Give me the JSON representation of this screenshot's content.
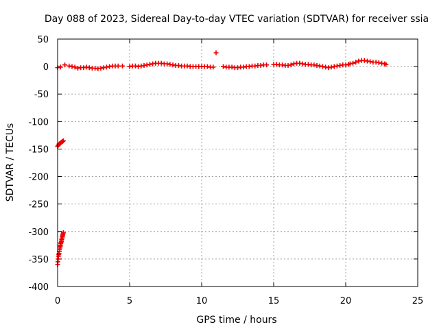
{
  "chart_data": {
    "type": "scatter",
    "title": "Day 088 of 2023, Sidereal Day-to-day VTEC variation (SDTVAR) for receiver ssia",
    "xlabel": "GPS time / hours",
    "ylabel": "SDTVAR / TECUs",
    "xlim": [
      0,
      25
    ],
    "ylim": [
      -400,
      50
    ],
    "xticks": [
      0,
      5,
      10,
      15,
      20,
      25
    ],
    "yticks": [
      50,
      0,
      -50,
      -100,
      -150,
      -200,
      -250,
      -300,
      -350,
      -400
    ],
    "grid": true,
    "legend": "none",
    "marker": "plus",
    "color": "#ee0000",
    "series": [
      {
        "segments": [
          {
            "x": [
              0.0,
              0.05,
              0.1,
              0.15,
              0.2,
              0.25,
              0.3,
              0.35,
              0.4
            ],
            "y": [
              -145,
              -143,
              -141,
              -140,
              -139,
              -138,
              -137,
              -136,
              -135
            ]
          },
          {
            "x": [
              0.0,
              0.02,
              0.04,
              0.06,
              0.08,
              0.1,
              0.12,
              0.14,
              0.16,
              0.18,
              0.2,
              0.22,
              0.24,
              0.26,
              0.28,
              0.3,
              0.32,
              0.34,
              0.36,
              0.38,
              0.4
            ],
            "y": [
              -360,
              -355,
              -350,
              -345,
              -342,
              -340,
              -336,
              -333,
              -330,
              -327,
              -325,
              -322,
              -320,
              -318,
              -315,
              -313,
              -310,
              -308,
              -306,
              -304,
              -302
            ]
          },
          {
            "x": [
              0.0,
              0.2,
              0.5,
              0.8,
              1.0,
              1.2,
              1.4,
              1.6,
              1.8,
              2.0,
              2.2,
              2.4,
              2.6,
              2.8,
              3.0,
              3.2,
              3.4,
              3.6,
              3.8,
              4.0,
              4.2
            ],
            "y": [
              -2,
              -1,
              3,
              1,
              0,
              -1,
              -3,
              -2,
              -2,
              -1,
              -2,
              -3,
              -3,
              -4,
              -3,
              -2,
              -1,
              0,
              1,
              1,
              1
            ]
          },
          {
            "x": [
              4.5
            ],
            "y": [
              1
            ]
          },
          {
            "x": [
              5.0,
              5.2,
              5.4,
              5.6,
              5.8,
              6.0,
              6.2,
              6.4,
              6.6,
              6.8,
              7.0,
              7.2,
              7.4,
              7.6,
              7.8,
              8.0,
              8.2,
              8.4,
              8.6,
              8.8,
              9.0,
              9.2,
              9.4,
              9.6,
              9.8,
              10.0,
              10.2,
              10.4,
              10.6,
              10.8
            ],
            "y": [
              0,
              1,
              1,
              0,
              1,
              2,
              3,
              4,
              5,
              6,
              6,
              6,
              5,
              5,
              4,
              3,
              2,
              2,
              1,
              1,
              1,
              0,
              0,
              0,
              0,
              0,
              0,
              0,
              -1,
              -1
            ]
          },
          {
            "x": [
              11.0
            ],
            "y": [
              25
            ]
          },
          {
            "x": [
              11.5,
              11.7,
              11.9,
              12.1,
              12.3,
              12.5,
              12.7,
              12.9,
              13.1,
              13.3,
              13.5,
              13.7,
              13.9,
              14.1,
              14.3,
              14.5
            ],
            "y": [
              0,
              -1,
              -1,
              -1,
              -2,
              -2,
              -1,
              -1,
              0,
              0,
              1,
              1,
              2,
              2,
              3,
              3
            ]
          },
          {
            "x": [
              15.0,
              15.2,
              15.4,
              15.6,
              15.8,
              16.0,
              16.2,
              16.4,
              16.6,
              16.8,
              17.0,
              17.2,
              17.4,
              17.6,
              17.8,
              18.0,
              18.2,
              18.4,
              18.6,
              18.8,
              19.0,
              19.2,
              19.4,
              19.6,
              19.8,
              20.0,
              20.2
            ],
            "y": [
              4,
              4,
              3,
              3,
              2,
              2,
              3,
              5,
              6,
              6,
              5,
              4,
              4,
              3,
              3,
              2,
              1,
              0,
              -1,
              -2,
              -1,
              0,
              1,
              2,
              3,
              3,
              4
            ]
          },
          {
            "x": [
              20.3,
              20.5,
              20.7,
              20.9,
              21.1,
              21.3,
              21.5,
              21.7,
              21.9,
              22.1,
              22.3,
              22.5,
              22.7,
              22.8
            ],
            "y": [
              5,
              6,
              8,
              10,
              11,
              11,
              10,
              9,
              8,
              8,
              7,
              6,
              5,
              4
            ]
          }
        ]
      }
    ]
  }
}
